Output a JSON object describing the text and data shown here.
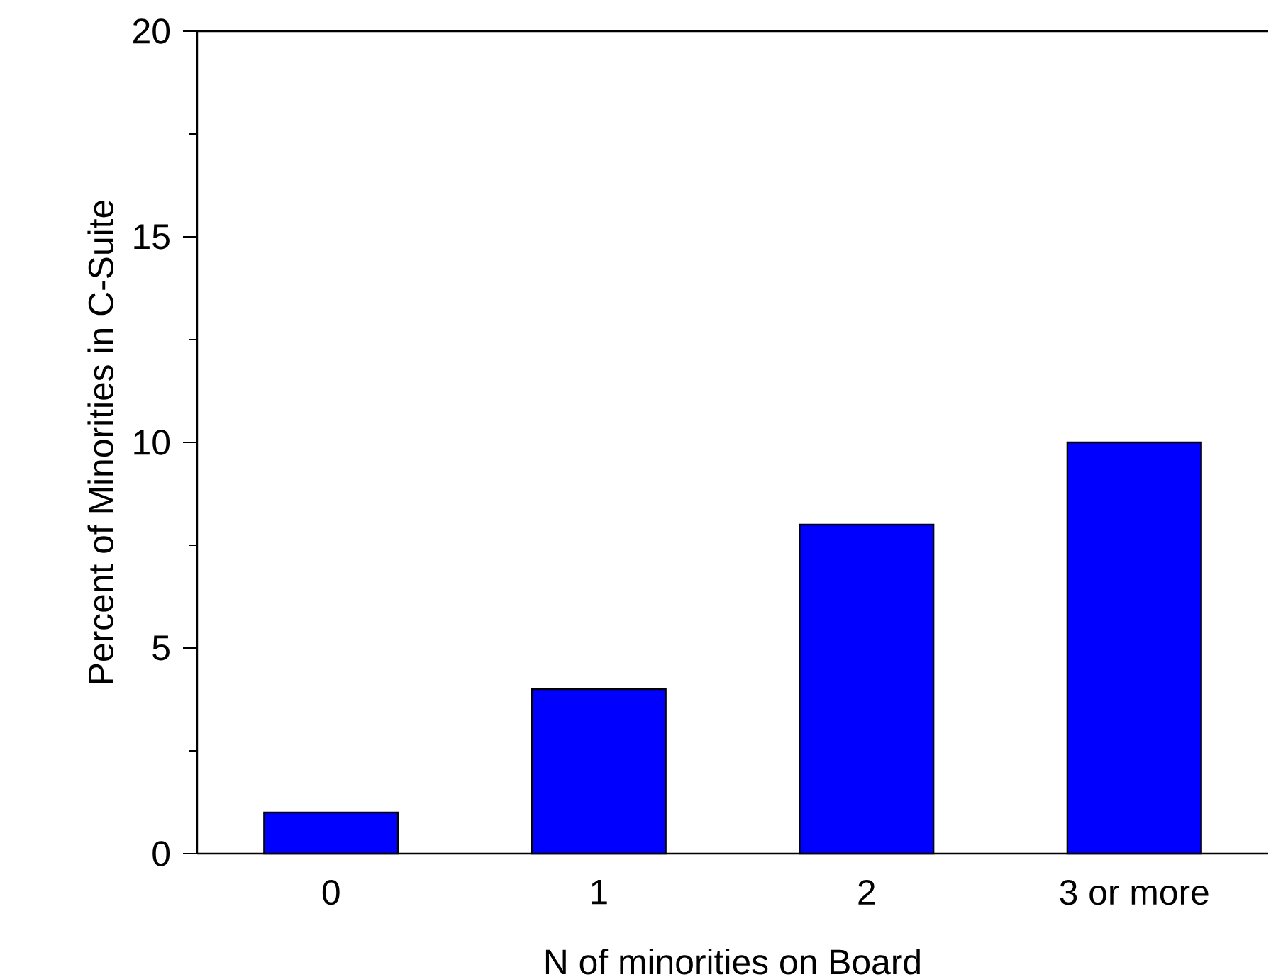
{
  "chart_data": {
    "type": "bar",
    "xlabel": "N of minorities on Board",
    "ylabel": "Percent of Minorities in C-Suite",
    "categories": [
      "0",
      "1",
      "2",
      "3 or more"
    ],
    "values": [
      1,
      4,
      8,
      10
    ],
    "color": "#0000ff",
    "ylim": [
      0,
      20
    ],
    "yticks": [
      0,
      5,
      10,
      15,
      20
    ],
    "grid": false
  }
}
